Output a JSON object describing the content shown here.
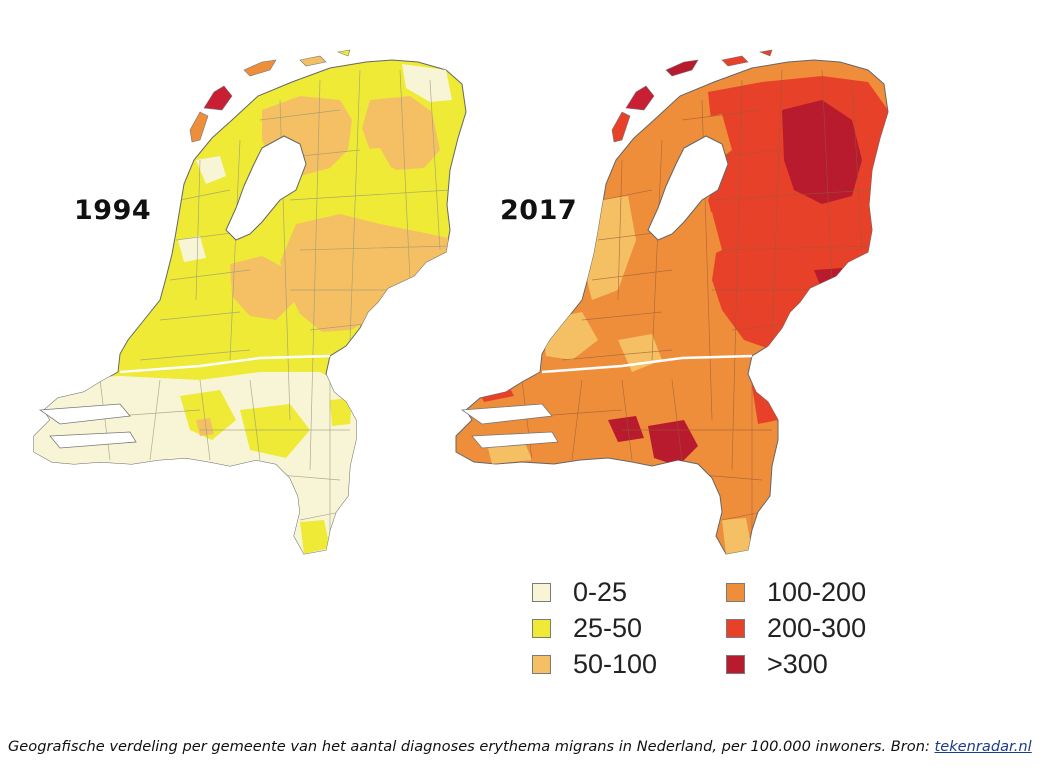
{
  "maps": [
    {
      "year_label": "1994",
      "base_color_key": "c25_50"
    },
    {
      "year_label": "2017",
      "base_color_key": "c100_200"
    }
  ],
  "legend": {
    "items": [
      {
        "label": "0-25",
        "color": "#f8f5d6"
      },
      {
        "label": "25-50",
        "color": "#eeea35"
      },
      {
        "label": "50-100",
        "color": "#f5c064"
      },
      {
        "label": "100-200",
        "color": "#ef8e3a"
      },
      {
        "label": "200-300",
        "color": "#e8412a"
      },
      {
        "label": ">300",
        "color": "#b81a2e"
      }
    ]
  },
  "caption": {
    "text": "Geografische verdeling per gemeente van het aantal diagnoses erythema migrans in Nederland, per 100.000 inwoners. Bron: ",
    "source_link": "tekenradar.nl"
  }
}
